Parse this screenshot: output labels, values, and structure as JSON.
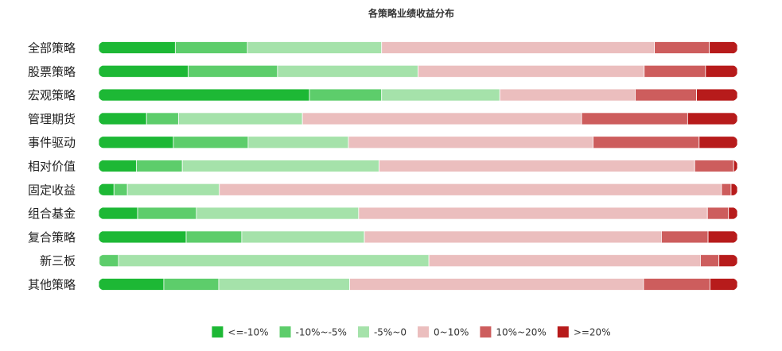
{
  "chart_data": {
    "type": "bar",
    "orientation": "horizontal",
    "stacked": true,
    "normalized": true,
    "title": "各策略业绩收益分布",
    "categories": [
      "全部策略",
      "股票策略",
      "宏观策略",
      "管理期货",
      "事件驱动",
      "相对价值",
      "固定收益",
      "组合基金",
      "复合策略",
      "新三板",
      "其他策略"
    ],
    "series": [
      {
        "name": "<=-10%",
        "color": "#1db835",
        "values": [
          12.0,
          14.0,
          33.0,
          7.5,
          11.7,
          5.9,
          2.4,
          6.1,
          13.7,
          0.1,
          10.2
        ]
      },
      {
        "name": "-10%~-5%",
        "color": "#5dcd6b",
        "values": [
          11.3,
          14.0,
          11.3,
          5.0,
          11.7,
          7.2,
          2.1,
          9.2,
          8.7,
          3.0,
          8.6
        ]
      },
      {
        "name": "-5%~0",
        "color": "#a5e2aa",
        "values": [
          21.0,
          22.0,
          18.5,
          19.4,
          15.7,
          30.8,
          14.4,
          25.4,
          19.2,
          48.6,
          20.5
        ]
      },
      {
        "name": "0~10%",
        "color": "#ebbebe",
        "values": [
          42.7,
          35.4,
          21.2,
          43.7,
          38.3,
          49.4,
          78.6,
          54.6,
          46.5,
          42.5,
          46.0
        ]
      },
      {
        "name": "10%~20%",
        "color": "#cd5d5d",
        "values": [
          8.6,
          9.6,
          9.6,
          16.6,
          16.6,
          6.1,
          1.5,
          3.3,
          7.3,
          2.9,
          10.4
        ]
      },
      {
        "name": ">=20%",
        "color": "#b71b1b",
        "values": [
          4.4,
          5.0,
          6.4,
          7.8,
          6.0,
          0.6,
          1.0,
          1.4,
          4.6,
          2.9,
          4.3
        ]
      }
    ],
    "xlim": [
      0,
      100
    ],
    "grid": false,
    "legend_position": "bottom"
  }
}
